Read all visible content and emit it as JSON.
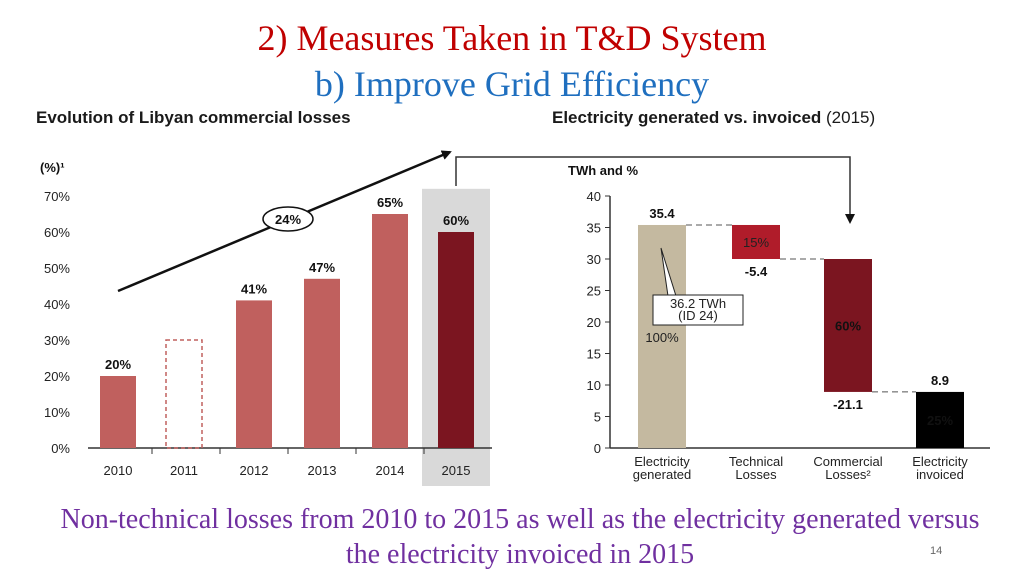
{
  "slide": {
    "title": "2) Measures Taken in T&D System",
    "subtitle": "b) Improve Grid Efficiency",
    "footer_text": "Non-technical losses from 2010 to 2015 as well as the electricity generated versus the electricity invoiced in 2015",
    "page_number": "14"
  },
  "colors": {
    "bar": "#c0605e",
    "highlight_bar": "#7b1520",
    "highlight_band": "#d9d9d9",
    "generated": "#c4b9a0",
    "invoiced": "#000000",
    "technical": "#b01c2a"
  },
  "chart_data": [
    {
      "type": "bar",
      "title": "Evolution of Libyan commercial losses",
      "unit_label": "(%)¹",
      "categories": [
        "2010",
        "2011",
        "2012",
        "2013",
        "2014",
        "2015"
      ],
      "values": [
        20,
        30,
        41,
        47,
        65,
        60
      ],
      "data_labels": [
        "20%",
        "",
        "41%",
        "47%",
        "65%",
        "60%"
      ],
      "estimated": [
        false,
        true,
        false,
        false,
        false,
        false
      ],
      "highlight": "2015",
      "ylim": [
        0,
        70
      ],
      "yticks": [
        "0%",
        "10%",
        "20%",
        "30%",
        "40%",
        "50%",
        "60%",
        "70%"
      ],
      "annotation": "24%",
      "grid": false
    },
    {
      "type": "waterfall",
      "title": "Electricity generated vs. invoiced",
      "title_suffix": "(2015)",
      "unit_label": "TWh and %",
      "categories": [
        "Electricity generated",
        "Technical Losses",
        "Commercial Losses²",
        "Electricity invoiced"
      ],
      "values": [
        35.4,
        -5.4,
        -21.1,
        8.9
      ],
      "value_labels": [
        "35.4",
        "-5.4",
        "-21.1",
        "8.9"
      ],
      "percent_labels": [
        "100%",
        "15%",
        "60%",
        "25%"
      ],
      "callout": [
        "36.2 TWh",
        "(ID 24)"
      ],
      "ylim": [
        0,
        40
      ],
      "yticks": [
        0,
        5,
        10,
        15,
        20,
        25,
        30,
        35,
        40
      ],
      "grid": false
    }
  ]
}
